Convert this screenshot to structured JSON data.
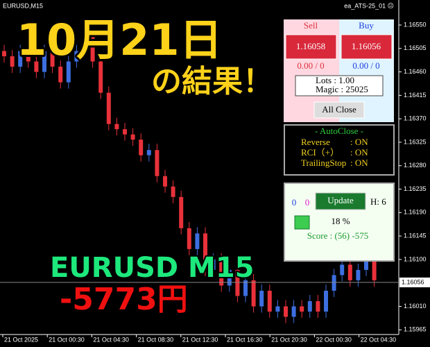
{
  "window": {
    "symbol": "EURUSD,M15",
    "ea_name": "ea_ATS-25_01 ☹"
  },
  "price_axis": {
    "ylim": [
      1.15956,
      1.16582
    ],
    "ticks": [
      {
        "value": 1.1655,
        "label": "1.16550"
      },
      {
        "value": 1.16505,
        "label": "1.16505"
      },
      {
        "value": 1.1646,
        "label": "1.16460"
      },
      {
        "value": 1.16415,
        "label": "1.16415"
      },
      {
        "value": 1.1637,
        "label": "1.16370"
      },
      {
        "value": 1.16325,
        "label": "1.16325"
      },
      {
        "value": 1.1628,
        "label": "1.16280"
      },
      {
        "value": 1.16235,
        "label": "1.16235"
      },
      {
        "value": 1.1619,
        "label": "1.16190"
      },
      {
        "value": 1.16145,
        "label": "1.16145"
      },
      {
        "value": 1.161,
        "label": "1.16100"
      },
      {
        "value": 1.1601,
        "label": "1.16010"
      },
      {
        "value": 1.15965,
        "label": "1.15965"
      }
    ],
    "current": {
      "value": 1.16056,
      "label": "1.16056"
    }
  },
  "time_axis": [
    "21 Oct 2025",
    "21 Oct 00:30",
    "21 Oct 04:30",
    "21 Oct 08:30",
    "21 Oct 12:30",
    "21 Oct 16:30",
    "21 Oct 20:30",
    "22 Oct 00:30",
    "22 Oct 04:30"
  ],
  "candles": [
    [
      1.165,
      1.16512,
      1.16478,
      1.1649
    ],
    [
      1.1649,
      1.16502,
      1.16458,
      1.1647
    ],
    [
      1.1647,
      1.16512,
      1.16458,
      1.165
    ],
    [
      1.165,
      1.16512,
      1.16468,
      1.1648
    ],
    [
      1.1648,
      1.16492,
      1.16448,
      1.1646
    ],
    [
      1.1646,
      1.16512,
      1.16448,
      1.165
    ],
    [
      1.165,
      1.16512,
      1.16458,
      1.1647
    ],
    [
      1.1647,
      1.16482,
      1.16428,
      1.1644
    ],
    [
      1.1644,
      1.16492,
      1.16428,
      1.1648
    ],
    [
      1.1648,
      1.16512,
      1.16468,
      1.165
    ],
    [
      1.165,
      1.1656,
      1.16488,
      1.1653
    ],
    [
      1.1653,
      1.16542,
      1.16468,
      1.1648
    ],
    [
      1.1648,
      1.16492,
      1.16408,
      1.1642
    ],
    [
      1.1642,
      1.16432,
      1.16348,
      1.1636
    ],
    [
      1.1636,
      1.16372,
      1.16338,
      1.1635
    ],
    [
      1.1635,
      1.16362,
      1.16328,
      1.1634
    ],
    [
      1.1634,
      1.16352,
      1.16318,
      1.1633
    ],
    [
      1.1633,
      1.16342,
      1.16288,
      1.163
    ],
    [
      1.163,
      1.16322,
      1.16288,
      1.1631
    ],
    [
      1.1631,
      1.16322,
      1.16248,
      1.1626
    ],
    [
      1.1626,
      1.16272,
      1.16228,
      1.1624
    ],
    [
      1.1624,
      1.16252,
      1.16208,
      1.1622
    ],
    [
      1.1622,
      1.16232,
      1.16148,
      1.1616
    ],
    [
      1.1616,
      1.16172,
      1.16108,
      1.1612
    ],
    [
      1.1612,
      1.16162,
      1.16108,
      1.1615
    ],
    [
      1.1615,
      1.16162,
      1.16068,
      1.1608
    ],
    [
      1.1608,
      1.16112,
      1.16068,
      1.161
    ],
    [
      1.161,
      1.16112,
      1.16038,
      1.1605
    ],
    [
      1.1605,
      1.16092,
      1.16038,
      1.1608
    ],
    [
      1.1608,
      1.16092,
      1.16018,
      1.1603
    ],
    [
      1.1603,
      1.16072,
      1.16018,
      1.1606
    ],
    [
      1.1606,
      1.16072,
      1.15998,
      1.1601
    ],
    [
      1.1601,
      1.16052,
      1.15998,
      1.1604
    ],
    [
      1.1604,
      1.16052,
      1.15988,
      1.16
    ],
    [
      1.16,
      1.16022,
      1.15988,
      1.1601
    ],
    [
      1.1601,
      1.16022,
      1.15978,
      1.1599
    ],
    [
      1.1599,
      1.16022,
      1.15978,
      1.1601
    ],
    [
      1.1601,
      1.16022,
      1.15988,
      1.16
    ],
    [
      1.16,
      1.16032,
      1.15988,
      1.1602
    ],
    [
      1.1602,
      1.16032,
      1.15988,
      1.16
    ],
    [
      1.16,
      1.16052,
      1.15988,
      1.1604
    ],
    [
      1.1604,
      1.16082,
      1.16028,
      1.1607
    ],
    [
      1.1607,
      1.16102,
      1.16058,
      1.1609
    ],
    [
      1.1609,
      1.16102,
      1.16048,
      1.1606
    ],
    [
      1.1606,
      1.16092,
      1.16048,
      1.1608
    ],
    [
      1.1608,
      1.16112,
      1.16068,
      1.161
    ],
    [
      1.161,
      1.16112,
      1.16048,
      1.1606
    ]
  ],
  "overlay": {
    "date": "10月21日",
    "result": "の結果！",
    "pair": "EURUSD M15",
    "profit": "-5773円"
  },
  "trade_panel": {
    "sell_label": "Sell",
    "buy_label": "Buy",
    "sell_price": "1.16058",
    "buy_price": "1.16056",
    "sell_position": "0.00 / 0",
    "buy_position": "0.00 / 0",
    "lots": "Lots : 1.00",
    "magic": "Magic : 25025",
    "close_all": "All Close"
  },
  "autoclose_panel": {
    "title": "- AutoClose -",
    "rows": [
      [
        "Reverse",
        ": ON"
      ],
      [
        "RCI（+）",
        ": ON"
      ],
      [
        "TrailingStop",
        ": ON"
      ]
    ]
  },
  "score_panel": {
    "count_a": "0",
    "count_b": "0",
    "update": "Update",
    "hours": "H: 6",
    "percent": "18 %",
    "score": "Score : (56) -575"
  }
}
